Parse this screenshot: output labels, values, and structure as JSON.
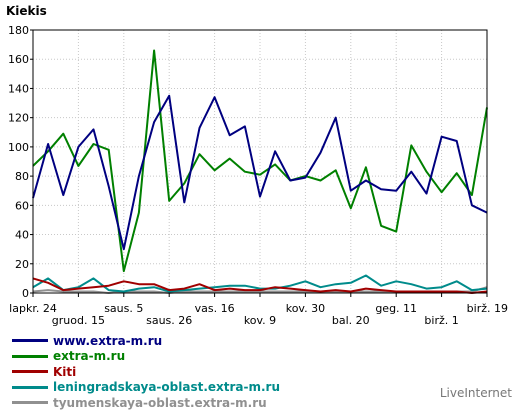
{
  "chart_data": {
    "type": "line",
    "ylabel": "Kiekis",
    "ylim": [
      0,
      180
    ],
    "yticks": [
      0,
      20,
      40,
      60,
      80,
      100,
      120,
      140,
      160,
      180
    ],
    "grid": true,
    "x_labels_row1": [
      {
        "label": "lapkr. 24",
        "index": 0
      },
      {
        "label": "saus. 5",
        "index": 6
      },
      {
        "label": "vas. 16",
        "index": 12
      },
      {
        "label": "kov. 30",
        "index": 18
      },
      {
        "label": "geg. 11",
        "index": 24
      },
      {
        "label": "birž. 19",
        "index": 30
      }
    ],
    "x_labels_row2": [
      {
        "label": "gruod. 15",
        "index": 3
      },
      {
        "label": "saus. 26",
        "index": 9
      },
      {
        "label": "kov. 9",
        "index": 15
      },
      {
        "label": "bal. 20",
        "index": 21
      },
      {
        "label": "birž. 1",
        "index": 27
      }
    ],
    "series": [
      {
        "name": "www.extra-m.ru",
        "color": "#000080",
        "values": [
          65,
          102,
          67,
          100,
          112,
          73,
          30,
          80,
          117,
          135,
          62,
          113,
          134,
          108,
          114,
          66,
          97,
          77,
          79,
          96,
          120,
          70,
          77,
          71,
          70,
          83,
          68,
          107,
          104,
          60,
          55
        ]
      },
      {
        "name": "extra-m.ru",
        "color": "#008000",
        "values": [
          87,
          97,
          109,
          87,
          102,
          98,
          15,
          55,
          166,
          63,
          75,
          95,
          84,
          92,
          83,
          81,
          88,
          77,
          80,
          77,
          84,
          58,
          86,
          46,
          42,
          101,
          83,
          69,
          82,
          67,
          127
        ]
      },
      {
        "name": "Kiti",
        "color": "#a00000",
        "values": [
          10,
          7,
          2,
          3,
          4,
          5,
          8,
          6,
          6,
          2,
          3,
          6,
          2,
          3,
          2,
          2,
          4,
          3,
          2,
          1,
          2,
          1,
          3,
          2,
          1,
          1,
          1,
          1,
          1,
          0,
          1
        ]
      },
      {
        "name": "leningradskaya-oblast.extra-m.ru",
        "color": "#008b8b",
        "values": [
          4,
          10,
          2,
          4,
          10,
          2,
          1,
          3,
          4,
          1,
          2,
          3,
          4,
          5,
          5,
          3,
          3,
          5,
          8,
          4,
          6,
          7,
          12,
          5,
          8,
          6,
          3,
          4,
          8,
          2,
          3
        ]
      },
      {
        "name": "tyumenskaya-oblast.extra-m.ru",
        "color": "#909090",
        "values": [
          1,
          2,
          1,
          1,
          1,
          0,
          1,
          1,
          1,
          0,
          1,
          1,
          1,
          1,
          1,
          1,
          1,
          1,
          1,
          1,
          1,
          1,
          1,
          1,
          1,
          1,
          1,
          1,
          1,
          1,
          4
        ]
      }
    ]
  },
  "watermark": "LiveInternet"
}
